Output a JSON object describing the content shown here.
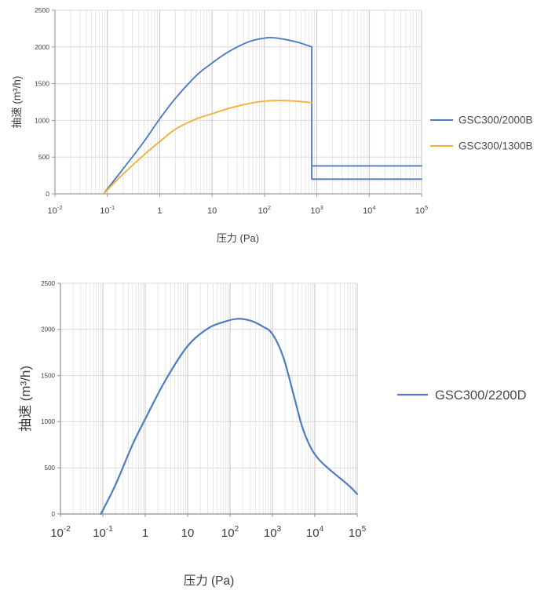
{
  "page": {
    "background": "#ffffff"
  },
  "chart_data": [
    {
      "id": "top",
      "type": "line",
      "xlabel": "压力 (Pa)",
      "ylabel": "抽速 (m³/h)",
      "xscale": "log",
      "xlim": [
        0.01,
        100000
      ],
      "ylim": [
        0,
        2500
      ],
      "yticks": [
        0,
        500,
        1000,
        1500,
        2000,
        2500
      ],
      "xtick_labels": [
        "10^-2",
        "10^-1",
        "1",
        "10",
        "10^2",
        "10^3",
        "10^4",
        "10^5"
      ],
      "grid": {
        "h_color": "#dadada",
        "minor_color": "#e1e1e1",
        "major_color": "#cac3bb"
      },
      "legend_position": "right-center",
      "series": [
        {
          "name": "GSC300/2000B",
          "color": "#4e7cc2",
          "segments": [
            {
              "smooth": true,
              "points": [
                [
                  0.085,
                  0
                ],
                [
                  0.2,
                  340
                ],
                [
                  0.5,
                  710
                ],
                [
                  1,
                  1020
                ],
                [
                  2,
                  1300
                ],
                [
                  5,
                  1610
                ],
                [
                  10,
                  1780
                ],
                [
                  20,
                  1930
                ],
                [
                  50,
                  2070
                ],
                [
                  100,
                  2120
                ],
                [
                  150,
                  2125
                ],
                [
                  300,
                  2090
                ],
                [
                  500,
                  2050
                ],
                [
                  800,
                  2000
                ]
              ]
            },
            {
              "smooth": false,
              "points": [
                [
                  800,
                  2000
                ],
                [
                  800,
                  200
                ],
                [
                  100000,
                  200
                ]
              ]
            },
            {
              "smooth": false,
              "points": [
                [
                  800,
                  380
                ],
                [
                  100000,
                  380
                ]
              ]
            }
          ]
        },
        {
          "name": "GSC300/1300B",
          "color": "#f1b13e",
          "segments": [
            {
              "smooth": true,
              "points": [
                [
                  0.085,
                  0
                ],
                [
                  0.2,
                  270
                ],
                [
                  0.5,
                  530
                ],
                [
                  1,
                  710
                ],
                [
                  2,
                  880
                ],
                [
                  5,
                  1020
                ],
                [
                  10,
                  1090
                ],
                [
                  20,
                  1160
                ],
                [
                  50,
                  1230
                ],
                [
                  100,
                  1262
                ],
                [
                  200,
                  1270
                ],
                [
                  400,
                  1262
                ],
                [
                  800,
                  1240
                ]
              ]
            }
          ]
        }
      ]
    },
    {
      "id": "bottom",
      "type": "line",
      "xlabel": "压力 (Pa)",
      "ylabel": "抽速 (m³/h)",
      "xscale": "log",
      "xlim": [
        0.01,
        100000
      ],
      "ylim": [
        0,
        2500
      ],
      "yticks": [
        0,
        500,
        1000,
        1500,
        2000,
        2500
      ],
      "xtick_labels": [
        "10^-2",
        "10^-1",
        "1",
        "10",
        "10^2",
        "10^3",
        "10^4",
        "10^5"
      ],
      "grid": {
        "h_color": "#dadada",
        "minor_color": "#e1e1e1",
        "major_color": "#cac3bb"
      },
      "legend_position": "right-center",
      "series": [
        {
          "name": "GSC300/2200D",
          "color": "#4e7cc2",
          "segments": [
            {
              "smooth": true,
              "points": [
                [
                  0.09,
                  0
                ],
                [
                  0.2,
                  320
                ],
                [
                  0.5,
                  750
                ],
                [
                  1,
                  1030
                ],
                [
                  3,
                  1450
                ],
                [
                  10,
                  1820
                ],
                [
                  30,
                  2010
                ],
                [
                  70,
                  2080
                ],
                [
                  150,
                  2115
                ],
                [
                  300,
                  2095
                ],
                [
                  600,
                  2030
                ],
                [
                  1000,
                  1950
                ],
                [
                  1800,
                  1700
                ],
                [
                  3000,
                  1330
                ],
                [
                  5000,
                  950
                ],
                [
                  8000,
                  720
                ],
                [
                  12000,
                  600
                ],
                [
                  20000,
                  500
                ],
                [
                  40000,
                  385
                ],
                [
                  70000,
                  290
                ],
                [
                  100000,
                  215
                ]
              ]
            }
          ]
        }
      ]
    }
  ]
}
